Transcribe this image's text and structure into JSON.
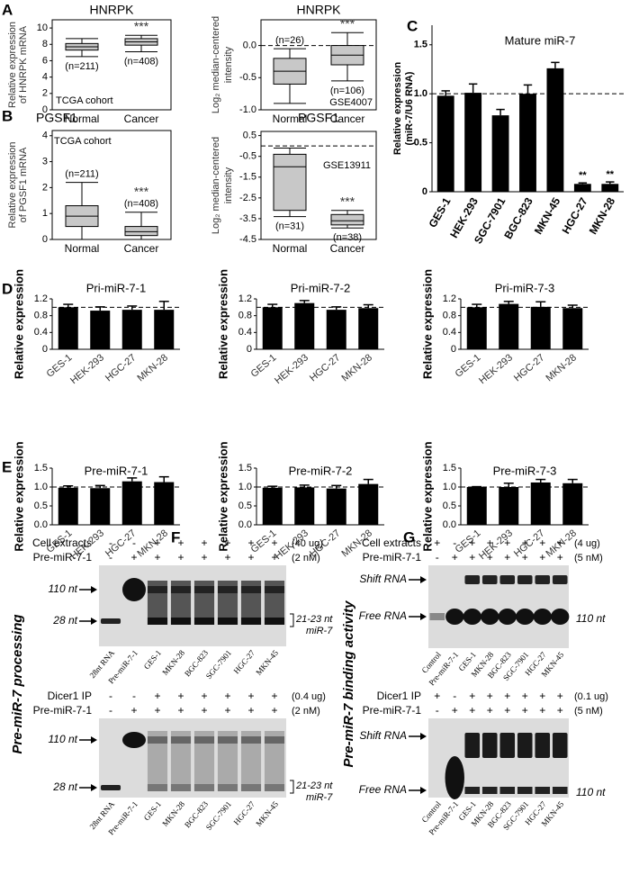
{
  "panel_labels": [
    "A",
    "B",
    "C",
    "D",
    "E",
    "F",
    "G"
  ],
  "chart_data": [
    {
      "type": "box",
      "title": "HNRPK",
      "ylabel": [
        "Relative expression",
        "of HNRPK mRNA"
      ],
      "categories": [
        "Normal",
        "Cancer"
      ],
      "whisker_low": [
        6.5,
        7.1
      ],
      "q1": [
        7.3,
        7.9
      ],
      "median": [
        7.7,
        8.3
      ],
      "q3": [
        8.1,
        8.7
      ],
      "whisker_high": [
        8.7,
        9.1
      ],
      "ylim": [
        0,
        11
      ],
      "yticks": [
        0,
        2,
        4,
        6,
        8,
        10
      ],
      "n_labels": [
        "(n=211)",
        "(n=408)"
      ],
      "significance": "***",
      "cohort": "TCGA cohort",
      "color": "#c8c8c8"
    },
    {
      "type": "box",
      "title": "HNRPK",
      "ylabel": [
        "Log₂ median-centered",
        "intensity"
      ],
      "categories": [
        "Normal",
        "Cancer"
      ],
      "whisker_low": [
        -0.9,
        -0.55
      ],
      "q1": [
        -0.6,
        -0.3
      ],
      "median": [
        -0.4,
        -0.15
      ],
      "q3": [
        -0.2,
        0.0
      ],
      "whisker_high": [
        -0.05,
        0.2
      ],
      "ylim": [
        -1.0,
        0.4
      ],
      "yticks": [
        {
          "value": -1.0,
          "label": "-1.0"
        },
        -0.5,
        {
          "value": 0,
          "label": "0.0"
        }
      ],
      "reference_line": 0,
      "n_labels": [
        "(n=26)",
        "(n=106)"
      ],
      "significance": "***",
      "cohort": "GSE4007",
      "color": "#c8c8c8"
    },
    {
      "type": "box",
      "title": "PGSF1",
      "ylabel": [
        "Relative expression",
        "of PGSF1 mRNA"
      ],
      "categories": [
        "Normal",
        "Cancer"
      ],
      "whisker_low": [
        0,
        0
      ],
      "q1": [
        0.5,
        0.15
      ],
      "median": [
        0.9,
        0.3
      ],
      "q3": [
        1.3,
        0.5
      ],
      "whisker_high": [
        2.2,
        1.05
      ],
      "ylim": [
        0,
        4.2
      ],
      "yticks": [
        0,
        1,
        2,
        3,
        4
      ],
      "n_labels": [
        "(n=211)",
        "(n=408)"
      ],
      "significance": "***",
      "cohort": "TCGA cohort",
      "color": "#c8c8c8"
    },
    {
      "type": "box",
      "title": "PGSF1",
      "ylabel": [
        "Log₂ median-centered",
        "intensity"
      ],
      "categories": [
        "Normal",
        "Cancer"
      ],
      "whisker_low": [
        -3.4,
        -3.95
      ],
      "q1": [
        -3.1,
        -3.8
      ],
      "median": [
        -1.0,
        -3.6
      ],
      "q3": [
        -0.4,
        -3.3
      ],
      "whisker_high": [
        -0.1,
        -3.1
      ],
      "ylim": [
        -4.5,
        0.7
      ],
      "yticks": [
        0.5,
        -0.5,
        -1.5,
        -2.5,
        -3.5,
        -4.5
      ],
      "reference_line": 0,
      "n_labels": [
        "(n=31)",
        "(n=38)"
      ],
      "significance": "***",
      "cohort": "GSE13911",
      "color": "#c8c8c8"
    },
    {
      "type": "bar",
      "title": "Mature miR-7",
      "ylabel": [
        "Relative expression",
        "(miR-7/U6 RNA)"
      ],
      "categories": [
        "GES-1",
        "HEK-293",
        "SGC-7901",
        "BGC-823",
        "MKN-45",
        "HGC-27",
        "MKN-28"
      ],
      "values": [
        0.98,
        1.01,
        0.78,
        1.0,
        1.26,
        0.08,
        0.08
      ],
      "errors": [
        0.05,
        0.09,
        0.06,
        0.09,
        0.06,
        0.01,
        0.02
      ],
      "ylim": [
        0,
        1.7
      ],
      "yticks": [
        0,
        0.5,
        {
          "value": 1,
          "label": "1.0"
        },
        1.5
      ],
      "reference_line": 1,
      "annotations": [
        {
          "category": "HGC-27",
          "text": "**"
        },
        {
          "category": "MKN-28",
          "text": "**"
        }
      ],
      "color": "#000000"
    },
    {
      "type": "bar",
      "title": "Pri-miR-7-1",
      "ylabel": [
        "Relative expression"
      ],
      "categories": [
        "GES-1",
        "HEK-293",
        "HGC-27",
        "MKN-28"
      ],
      "values": [
        1.0,
        0.92,
        0.94,
        0.94
      ],
      "errors": [
        0.07,
        0.09,
        0.09,
        0.2
      ],
      "ylim": [
        0,
        1.2
      ],
      "yticks": [
        0,
        0.4,
        0.8,
        1.2
      ],
      "reference_line": 1,
      "color": "#000000"
    },
    {
      "type": "bar",
      "title": "Pri-miR-7-2",
      "ylabel": [
        "Relative expression"
      ],
      "categories": [
        "GES-1",
        "HEK-293",
        "HGC-27",
        "MKN-28"
      ],
      "values": [
        1.0,
        1.1,
        0.94,
        0.98
      ],
      "errors": [
        0.07,
        0.06,
        0.07,
        0.08
      ],
      "ylim": [
        0,
        1.2
      ],
      "yticks": [
        0,
        0.4,
        0.8,
        1.2
      ],
      "reference_line": 1,
      "color": "#000000"
    },
    {
      "type": "bar",
      "title": "Pri-miR-7-3",
      "ylabel": [
        "Relative expression"
      ],
      "categories": [
        "GES-1",
        "HEK-293",
        "HGC-27",
        "MKN-28"
      ],
      "values": [
        1.0,
        1.08,
        1.01,
        0.98
      ],
      "errors": [
        0.07,
        0.06,
        0.12,
        0.07
      ],
      "ylim": [
        0,
        1.2
      ],
      "yticks": [
        0,
        0.4,
        0.8,
        1.2
      ],
      "reference_line": 1,
      "color": "#000000"
    },
    {
      "type": "bar",
      "title": "Pre-miR-7-1",
      "ylabel": [
        "Relative expression"
      ],
      "categories": [
        "GES-1",
        "HEK-293",
        "HGC-27",
        "MKN-28"
      ],
      "values": [
        0.98,
        0.97,
        1.15,
        1.13
      ],
      "errors": [
        0.05,
        0.07,
        0.09,
        0.14
      ],
      "ylim": [
        0,
        1.5
      ],
      "yticks": [
        {
          "value": 0,
          "label": "0.0"
        },
        0.5,
        {
          "value": 1,
          "label": "1.0"
        },
        1.5
      ],
      "reference_line": 1,
      "color": "#000000"
    },
    {
      "type": "bar",
      "title": "Pre-miR-7-2",
      "ylabel": [
        "Relative expression"
      ],
      "categories": [
        "GES-1",
        "HEK-293",
        "HGC-27",
        "MKN-28"
      ],
      "values": [
        0.98,
        0.99,
        0.96,
        1.08
      ],
      "errors": [
        0.04,
        0.06,
        0.08,
        0.12
      ],
      "ylim": [
        0,
        1.5
      ],
      "yticks": [
        {
          "value": 0,
          "label": "0.0"
        },
        0.5,
        {
          "value": 1,
          "label": "1.0"
        },
        1.5
      ],
      "reference_line": 1,
      "color": "#000000"
    },
    {
      "type": "bar",
      "title": "Pre-miR-7-3",
      "ylabel": [
        "Relative expression"
      ],
      "categories": [
        "GES-1",
        "HEK-293",
        "HGC-27",
        "MKN-28"
      ],
      "values": [
        1.0,
        1.0,
        1.12,
        1.1
      ],
      "errors": [
        0.01,
        0.1,
        0.08,
        0.1
      ],
      "ylim": [
        0,
        1.5
      ],
      "yticks": [
        {
          "value": 0,
          "label": "0.0"
        },
        0.5,
        {
          "value": 1,
          "label": "1.0"
        },
        1.5
      ],
      "reference_line": 1,
      "color": "#000000"
    }
  ],
  "gels": {
    "F": {
      "side_label": "Pre-miR-7 processing",
      "blots": [
        {
          "rows": [
            {
              "name": "Cell extracts",
              "signs": [
                "-",
                "-",
                "+",
                "+",
                "+",
                "+",
                "+",
                "+"
              ],
              "amount": "(40 ug)"
            },
            {
              "name": "Pre-miR-7-1",
              "signs": [
                "-",
                "+",
                "+",
                "+",
                "+",
                "+",
                "+",
                "+"
              ],
              "amount": "(2 nM)"
            }
          ],
          "markers": [
            "110 nt",
            "28 nt"
          ],
          "product": [
            "21-23 nt",
            "miR-7"
          ],
          "lanes": [
            "28nt RNA",
            "Pre-miR-7-1",
            "GES-1",
            "MKN-28",
            "BGC-823",
            "SGC-7901",
            "HGC-27",
            "MKN-45"
          ]
        },
        {
          "rows": [
            {
              "name": "Dicer1 IP",
              "signs": [
                "-",
                "-",
                "+",
                "+",
                "+",
                "+",
                "+",
                "+"
              ],
              "amount": "(0.4 ug)"
            },
            {
              "name": "Pre-miR-7-1",
              "signs": [
                "-",
                "+",
                "+",
                "+",
                "+",
                "+",
                "+",
                "+"
              ],
              "amount": "(2 nM)"
            }
          ],
          "markers": [
            "110 nt",
            "28 nt"
          ],
          "product": [
            "21-23 nt",
            "miR-7"
          ],
          "lanes": [
            "28nt RNA",
            "Pre-miR-7-1",
            "GES-1",
            "MKN-28",
            "BGC-823",
            "SGC-7901",
            "HGC-27",
            "MKN-45"
          ]
        }
      ]
    },
    "G": {
      "side_label": "Pre-miR-7 binding activity",
      "blots": [
        {
          "rows": [
            {
              "name": "Cell extracts",
              "signs": [
                "+",
                "-",
                "+",
                "+",
                "+",
                "+",
                "+",
                "+"
              ],
              "amount": "(4 ug)"
            },
            {
              "name": "Pre-miR-7-1",
              "signs": [
                "-",
                "+",
                "+",
                "+",
                "+",
                "+",
                "+",
                "+"
              ],
              "amount": "(5 nM)"
            }
          ],
          "markers": [
            "Shift RNA",
            "Free RNA"
          ],
          "size": "110 nt",
          "lanes": [
            "Control",
            "Pre-miR-7-1",
            "GES-1",
            "MKN-28",
            "BGC-823",
            "SGC-7901",
            "HGC-27",
            "MKN-45"
          ]
        },
        {
          "rows": [
            {
              "name": "Dicer1 IP",
              "signs": [
                "+",
                "-",
                "+",
                "+",
                "+",
                "+",
                "+",
                "+"
              ],
              "amount": "(0.1 ug)"
            },
            {
              "name": "Pre-miR-7-1",
              "signs": [
                "-",
                "+",
                "+",
                "+",
                "+",
                "+",
                "+",
                "+"
              ],
              "amount": "(5 nM)"
            }
          ],
          "markers": [
            "Shift RNA",
            "Free RNA"
          ],
          "size": "110 nt",
          "lanes": [
            "Control",
            "Pre-miR-7-1",
            "GES-1",
            "MKN-28",
            "BGC-823",
            "SGC-7901",
            "HGC-27",
            "MKN-45"
          ]
        }
      ]
    }
  }
}
